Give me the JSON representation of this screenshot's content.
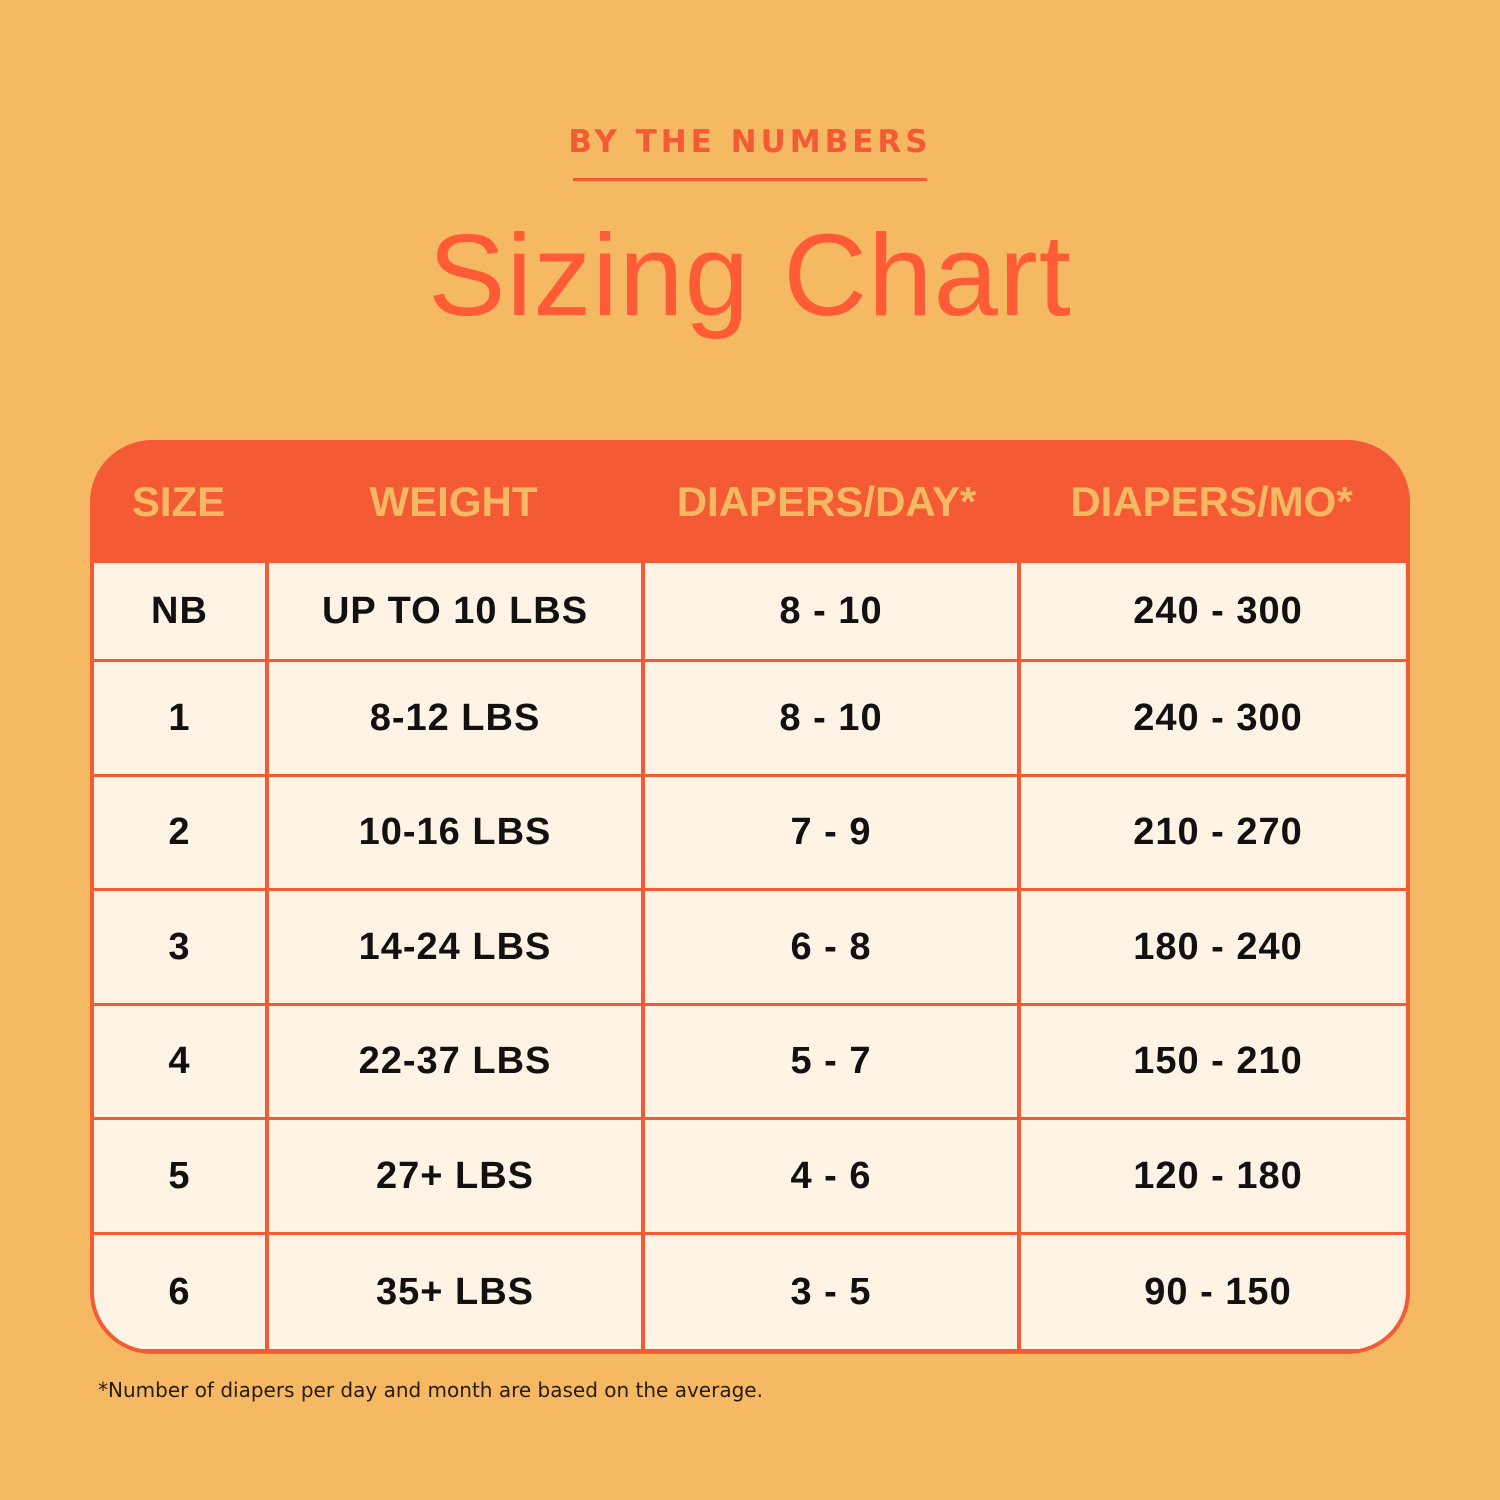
{
  "eyebrow": "BY THE NUMBERS",
  "title": "Sizing Chart",
  "colors": {
    "background": "#F5B964",
    "accent": "#F45B35",
    "cell": "#FEF3E4"
  },
  "table": {
    "headers": [
      "SIZE",
      "WEIGHT",
      "DIAPERS/DAY*",
      "DIAPERS/MO*"
    ],
    "rows": [
      [
        "NB",
        "UP TO 10 LBS",
        "8 - 10",
        "240 - 300"
      ],
      [
        "1",
        "8-12 LBS",
        "8 - 10",
        "240 - 300"
      ],
      [
        "2",
        "10-16 LBS",
        "7 - 9",
        "210 - 270"
      ],
      [
        "3",
        "14-24 LBS",
        "6 - 8",
        "180 - 240"
      ],
      [
        "4",
        "22-37 LBS",
        "5 - 7",
        "150 - 210"
      ],
      [
        "5",
        "27+ LBS",
        "4 - 6",
        "120 - 180"
      ],
      [
        "6",
        "35+ LBS",
        "3 - 5",
        "90 - 150"
      ]
    ]
  },
  "footnote": "*Number of diapers per day and month are based on the average."
}
